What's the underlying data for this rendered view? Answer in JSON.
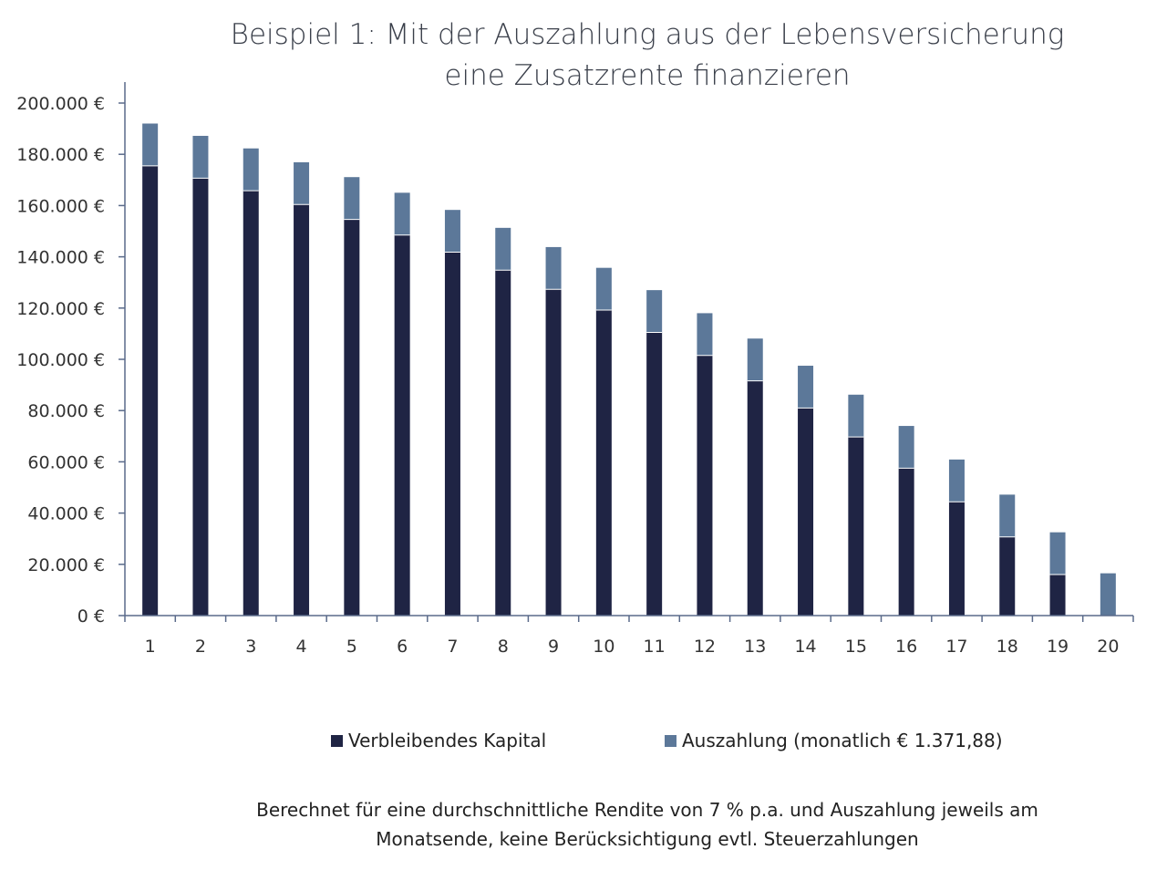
{
  "colors": {
    "kapital": "#1f2444",
    "auszahlung": "#5c7899",
    "axis": "#5a6a8a"
  },
  "chart_data": {
    "type": "bar",
    "stacked": true,
    "title": [
      "Beispiel 1: Mit der Auszahlung aus der Lebensversicherung",
      "eine Zusatzrente finanzieren"
    ],
    "categories": [
      "1",
      "2",
      "3",
      "4",
      "5",
      "6",
      "7",
      "8",
      "9",
      "10",
      "11",
      "12",
      "13",
      "14",
      "15",
      "16",
      "17",
      "18",
      "19",
      "20"
    ],
    "series": [
      {
        "name": "Verbleibendes Kapital",
        "values": [
          175500,
          170700,
          165800,
          160400,
          154600,
          148500,
          141800,
          134800,
          127300,
          119200,
          110500,
          101500,
          91600,
          81000,
          69700,
          57500,
          44400,
          30700,
          16000,
          0
        ]
      },
      {
        "name": "Auszahlung (monatlich € 1.371,88)",
        "values": [
          16500,
          16500,
          16500,
          16500,
          16500,
          16500,
          16500,
          16500,
          16500,
          16500,
          16500,
          16500,
          16500,
          16500,
          16500,
          16500,
          16500,
          16500,
          16500,
          16500
        ]
      }
    ],
    "ylim": [
      0,
      200000
    ],
    "yticks": [
      0,
      20000,
      40000,
      60000,
      80000,
      100000,
      120000,
      140000,
      160000,
      180000,
      200000
    ],
    "ytick_labels": [
      "0 €",
      "20.000 €",
      "40.000 €",
      "60.000 €",
      "80.000 €",
      "100.000 €",
      "120.000 €",
      "140.000 €",
      "160.000 €",
      "180.000 €",
      "200.000 €"
    ],
    "xlabel": "",
    "ylabel": "",
    "grid": false,
    "legend_position": "bottom"
  },
  "footnote": [
    "Berechnet für eine durchschnittliche Rendite von 7 % p.a. und Auszahlung jeweils am",
    "Monatsende, keine Berücksichtigung evtl. Steuerzahlungen"
  ]
}
